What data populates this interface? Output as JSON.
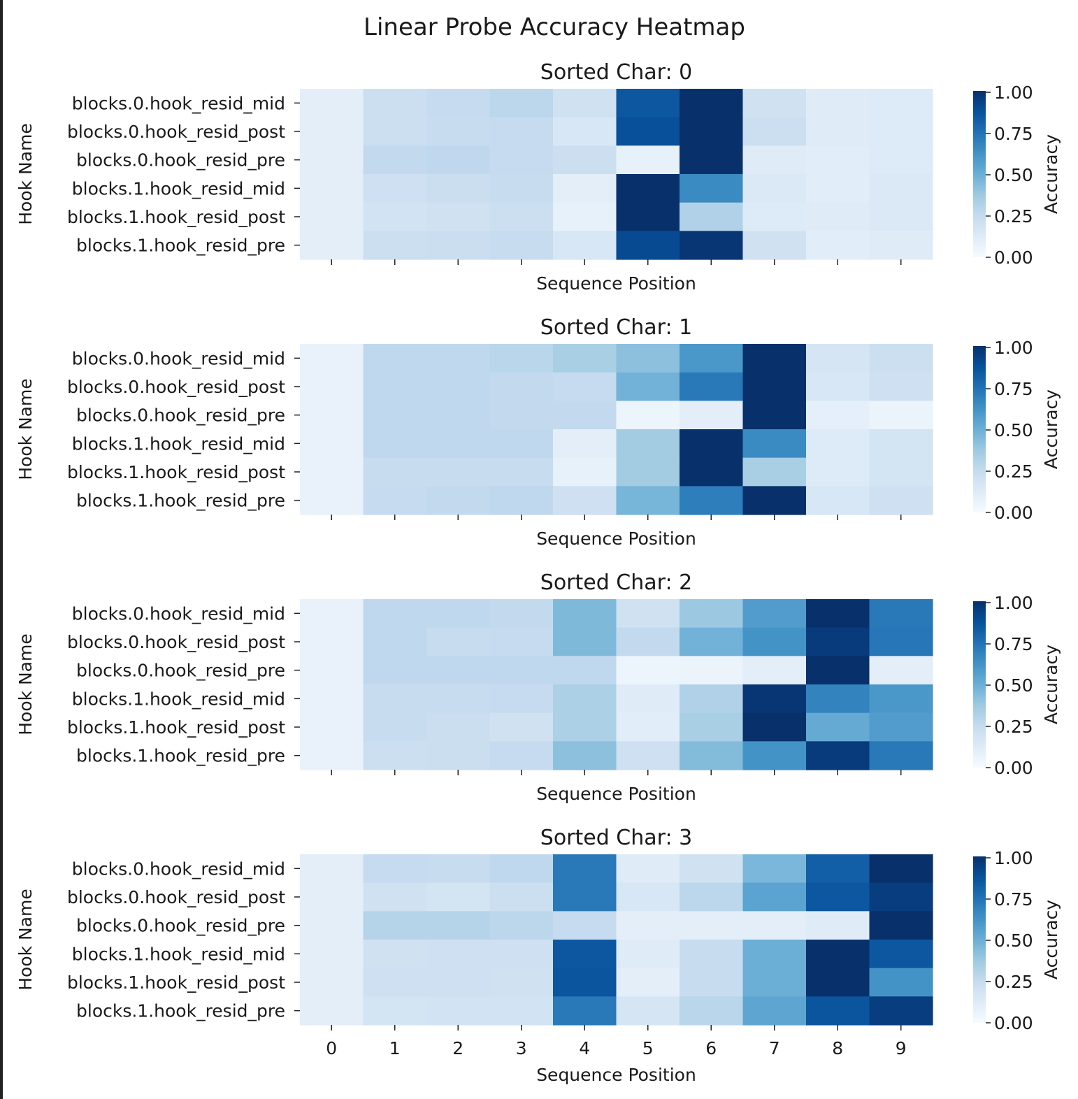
{
  "chart_data": {
    "type": "heatmap",
    "title": "Linear Probe Accuracy Heatmap",
    "xlabel": "Sequence Position",
    "ylabel": "Hook Name",
    "colorbar_label": "Accuracy",
    "colorbar_ticks": [
      "0.00",
      "0.25",
      "0.50",
      "0.75",
      "1.00"
    ],
    "value_range": [
      0,
      1
    ],
    "colormap": "Blues",
    "x": [
      "0",
      "1",
      "2",
      "3",
      "4",
      "5",
      "6",
      "7",
      "8",
      "9"
    ],
    "rows": [
      "blocks.0.hook_resid_mid",
      "blocks.0.hook_resid_post",
      "blocks.0.hook_resid_pre",
      "blocks.1.hook_resid_mid",
      "blocks.1.hook_resid_post",
      "blocks.1.hook_resid_pre"
    ],
    "panels": [
      {
        "title": "Sorted Char: 0",
        "values": [
          [
            0.1,
            0.22,
            0.25,
            0.28,
            0.2,
            0.85,
            1.0,
            0.2,
            0.12,
            0.13
          ],
          [
            0.1,
            0.22,
            0.24,
            0.25,
            0.16,
            0.88,
            1.0,
            0.22,
            0.12,
            0.13
          ],
          [
            0.1,
            0.26,
            0.27,
            0.25,
            0.22,
            0.08,
            1.0,
            0.12,
            0.11,
            0.13
          ],
          [
            0.1,
            0.21,
            0.23,
            0.24,
            0.1,
            1.0,
            0.65,
            0.14,
            0.11,
            0.14
          ],
          [
            0.1,
            0.19,
            0.2,
            0.22,
            0.08,
            1.0,
            0.32,
            0.13,
            0.12,
            0.14
          ],
          [
            0.1,
            0.22,
            0.23,
            0.24,
            0.16,
            0.9,
            0.98,
            0.2,
            0.11,
            0.12
          ]
        ]
      },
      {
        "title": "Sorted Char: 1",
        "values": [
          [
            0.07,
            0.27,
            0.27,
            0.29,
            0.34,
            0.42,
            0.6,
            1.0,
            0.17,
            0.22
          ],
          [
            0.07,
            0.27,
            0.27,
            0.26,
            0.25,
            0.48,
            0.72,
            1.0,
            0.16,
            0.21
          ],
          [
            0.07,
            0.27,
            0.27,
            0.26,
            0.26,
            0.05,
            0.1,
            1.0,
            0.09,
            0.06
          ],
          [
            0.07,
            0.27,
            0.27,
            0.27,
            0.1,
            0.36,
            1.0,
            0.65,
            0.13,
            0.18
          ],
          [
            0.07,
            0.24,
            0.24,
            0.24,
            0.08,
            0.36,
            1.0,
            0.34,
            0.13,
            0.18
          ],
          [
            0.07,
            0.25,
            0.26,
            0.27,
            0.21,
            0.47,
            0.7,
            1.0,
            0.16,
            0.21
          ]
        ]
      },
      {
        "title": "Sorted Char: 2",
        "values": [
          [
            0.07,
            0.27,
            0.27,
            0.26,
            0.45,
            0.2,
            0.38,
            0.58,
            1.0,
            0.72
          ],
          [
            0.07,
            0.27,
            0.24,
            0.25,
            0.45,
            0.26,
            0.48,
            0.62,
            0.96,
            0.73
          ],
          [
            0.07,
            0.27,
            0.27,
            0.27,
            0.27,
            0.05,
            0.06,
            0.1,
            1.0,
            0.1
          ],
          [
            0.07,
            0.24,
            0.24,
            0.25,
            0.33,
            0.12,
            0.32,
            0.98,
            0.68,
            0.6
          ],
          [
            0.07,
            0.24,
            0.23,
            0.2,
            0.33,
            0.11,
            0.34,
            1.0,
            0.52,
            0.58
          ],
          [
            0.07,
            0.22,
            0.23,
            0.25,
            0.42,
            0.21,
            0.44,
            0.62,
            0.96,
            0.72
          ]
        ]
      },
      {
        "title": "Sorted Char: 3",
        "values": [
          [
            0.1,
            0.25,
            0.24,
            0.27,
            0.72,
            0.12,
            0.2,
            0.46,
            0.82,
            1.0
          ],
          [
            0.1,
            0.2,
            0.18,
            0.22,
            0.72,
            0.16,
            0.28,
            0.55,
            0.85,
            0.95
          ],
          [
            0.1,
            0.3,
            0.3,
            0.28,
            0.25,
            0.1,
            0.1,
            0.1,
            0.12,
            1.0
          ],
          [
            0.1,
            0.2,
            0.21,
            0.21,
            0.85,
            0.12,
            0.24,
            0.5,
            1.0,
            0.85
          ],
          [
            0.1,
            0.21,
            0.21,
            0.2,
            0.86,
            0.1,
            0.24,
            0.5,
            1.0,
            0.62
          ],
          [
            0.1,
            0.18,
            0.19,
            0.19,
            0.72,
            0.17,
            0.29,
            0.54,
            0.86,
            0.95
          ]
        ]
      }
    ]
  }
}
